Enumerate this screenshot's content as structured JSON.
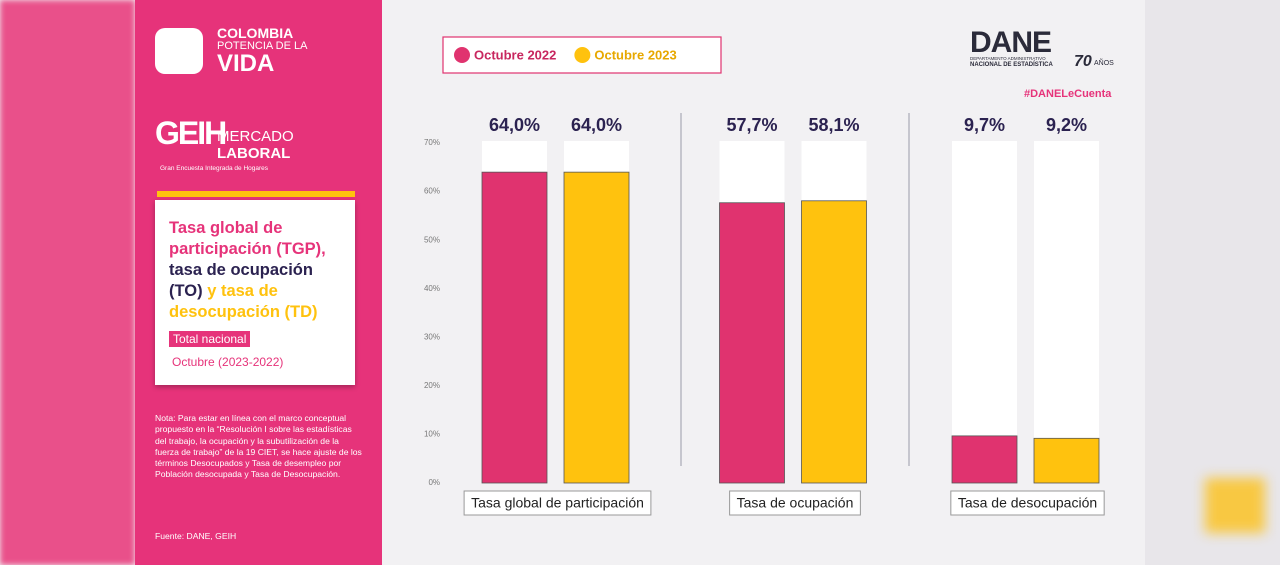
{
  "branding": {
    "country_lines": [
      "COLOMBIA",
      "POTENCIA DE LA",
      "VIDA"
    ],
    "geih": "GEIH",
    "geih_lines": [
      "MERCADO",
      "LABORAL"
    ],
    "geih_sub": "Gran Encuesta Integrada de Hogares",
    "dane": "DANE",
    "dane_lines": [
      "DEPARTAMENTO ADMINISTRATIVO",
      "NACIONAL DE ESTADÍSTICA"
    ],
    "anniversary": "70",
    "anniversary_word": "AÑOS",
    "hashtag": "#DANELeCuenta"
  },
  "panel": {
    "title_parts": [
      "Tasa global de participación (TGP),",
      "tasa de ocupación (TO)",
      "y tasa de desocupación (TD)"
    ],
    "scope": "Total nacional",
    "period": "Octubre (2023-2022)",
    "note": "Nota: Para estar en línea con el marco conceptual propuesto en la “Resolución I sobre las estadísticas del trabajo, la ocupación y la subutilización de la fuerza de trabajo” de la 19 CIET, se hace ajuste de los términos Desocupados y Tasa de desempleo por Población desocupada y Tasa de Desocupación.",
    "source": "Fuente: DANE, GEIH"
  },
  "chart_data": {
    "type": "bar",
    "categories": [
      "Tasa global de participación",
      "Tasa de ocupación",
      "Tasa de desocupación"
    ],
    "series": [
      {
        "name": "Octubre 2022",
        "color": "#e0336f",
        "values": [
          64.0,
          57.7,
          9.7
        ],
        "value_labels": [
          "64,0%",
          "57,7%",
          "9,7%"
        ]
      },
      {
        "name": "Octubre 2023",
        "color": "#ffc20e",
        "values": [
          64.0,
          58.1,
          9.2
        ],
        "value_labels": [
          "64,0%",
          "58,1%",
          "9,2%"
        ]
      }
    ],
    "ylim": [
      0,
      70
    ],
    "yticks": [
      {
        "value": 0,
        "label": "0%"
      },
      {
        "value": 10,
        "label": "10%"
      },
      {
        "value": 20,
        "label": "20%"
      },
      {
        "value": 30,
        "label": "30%"
      },
      {
        "value": 40,
        "label": "40%"
      },
      {
        "value": 50,
        "label": "50%"
      },
      {
        "value": 60,
        "label": "60%"
      },
      {
        "value": 70,
        "label": "70%"
      }
    ],
    "grid": false,
    "legend": "top-left"
  }
}
